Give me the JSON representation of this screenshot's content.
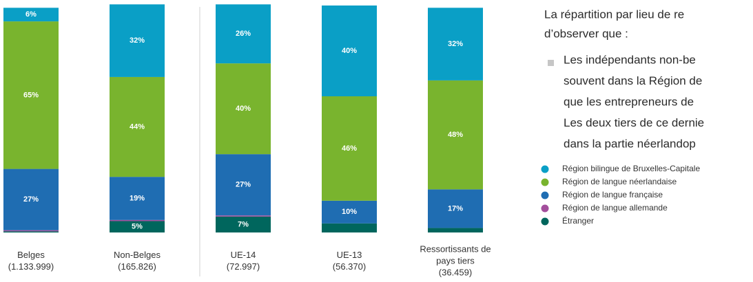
{
  "chart_data": {
    "type": "stacked-bar",
    "categories": [
      [
        "Belges",
        "(1.133.999)"
      ],
      [
        "Non-Belges",
        "(165.826)"
      ],
      [
        "UE-14",
        "(72.997)"
      ],
      [
        "UE-13",
        "(56.370)"
      ],
      [
        "Ressortissants de",
        "pays tiers",
        "(36.459)"
      ]
    ],
    "ylim": [
      0,
      100
    ],
    "series": [
      {
        "name": "Région bilingue de Bruxelles-Capitale",
        "color": "#0a9fc6",
        "values": [
          6,
          32,
          26,
          40,
          32
        ],
        "value_labels": [
          "6%",
          "32%",
          "26%",
          "40%",
          "32%"
        ]
      },
      {
        "name": "Région de langue néerlandaise",
        "color": "#79b42e",
        "values": [
          65,
          44,
          40,
          46,
          48
        ],
        "value_labels": [
          "65%",
          "44%",
          "40%",
          "46%",
          "48%"
        ]
      },
      {
        "name": "Région de langue française",
        "color": "#1f6db2",
        "values": [
          27,
          19,
          27,
          10,
          17
        ],
        "value_labels": [
          "27%",
          "19%",
          "27%",
          "10%",
          "17%"
        ]
      },
      {
        "name": "Région de langue allemande",
        "color": "#a34e9c",
        "values": [
          0.5,
          0.5,
          0.5,
          0,
          0
        ],
        "value_labels": [
          null,
          null,
          null,
          null,
          null
        ]
      },
      {
        "name": "Étranger",
        "color": "#00665d",
        "values": [
          0.5,
          5,
          7,
          4,
          2
        ],
        "value_labels": [
          null,
          "5%",
          "7%",
          null,
          null
        ]
      }
    ]
  },
  "text": {
    "intro": [
      "La répartition par lieu de re",
      "d’observer que :"
    ],
    "bullet": [
      "Les indépendants non-be",
      "souvent dans la Région de",
      "que les entrepreneurs de",
      "Les deux tiers de ce dernie",
      "dans la partie néerlandop"
    ]
  }
}
